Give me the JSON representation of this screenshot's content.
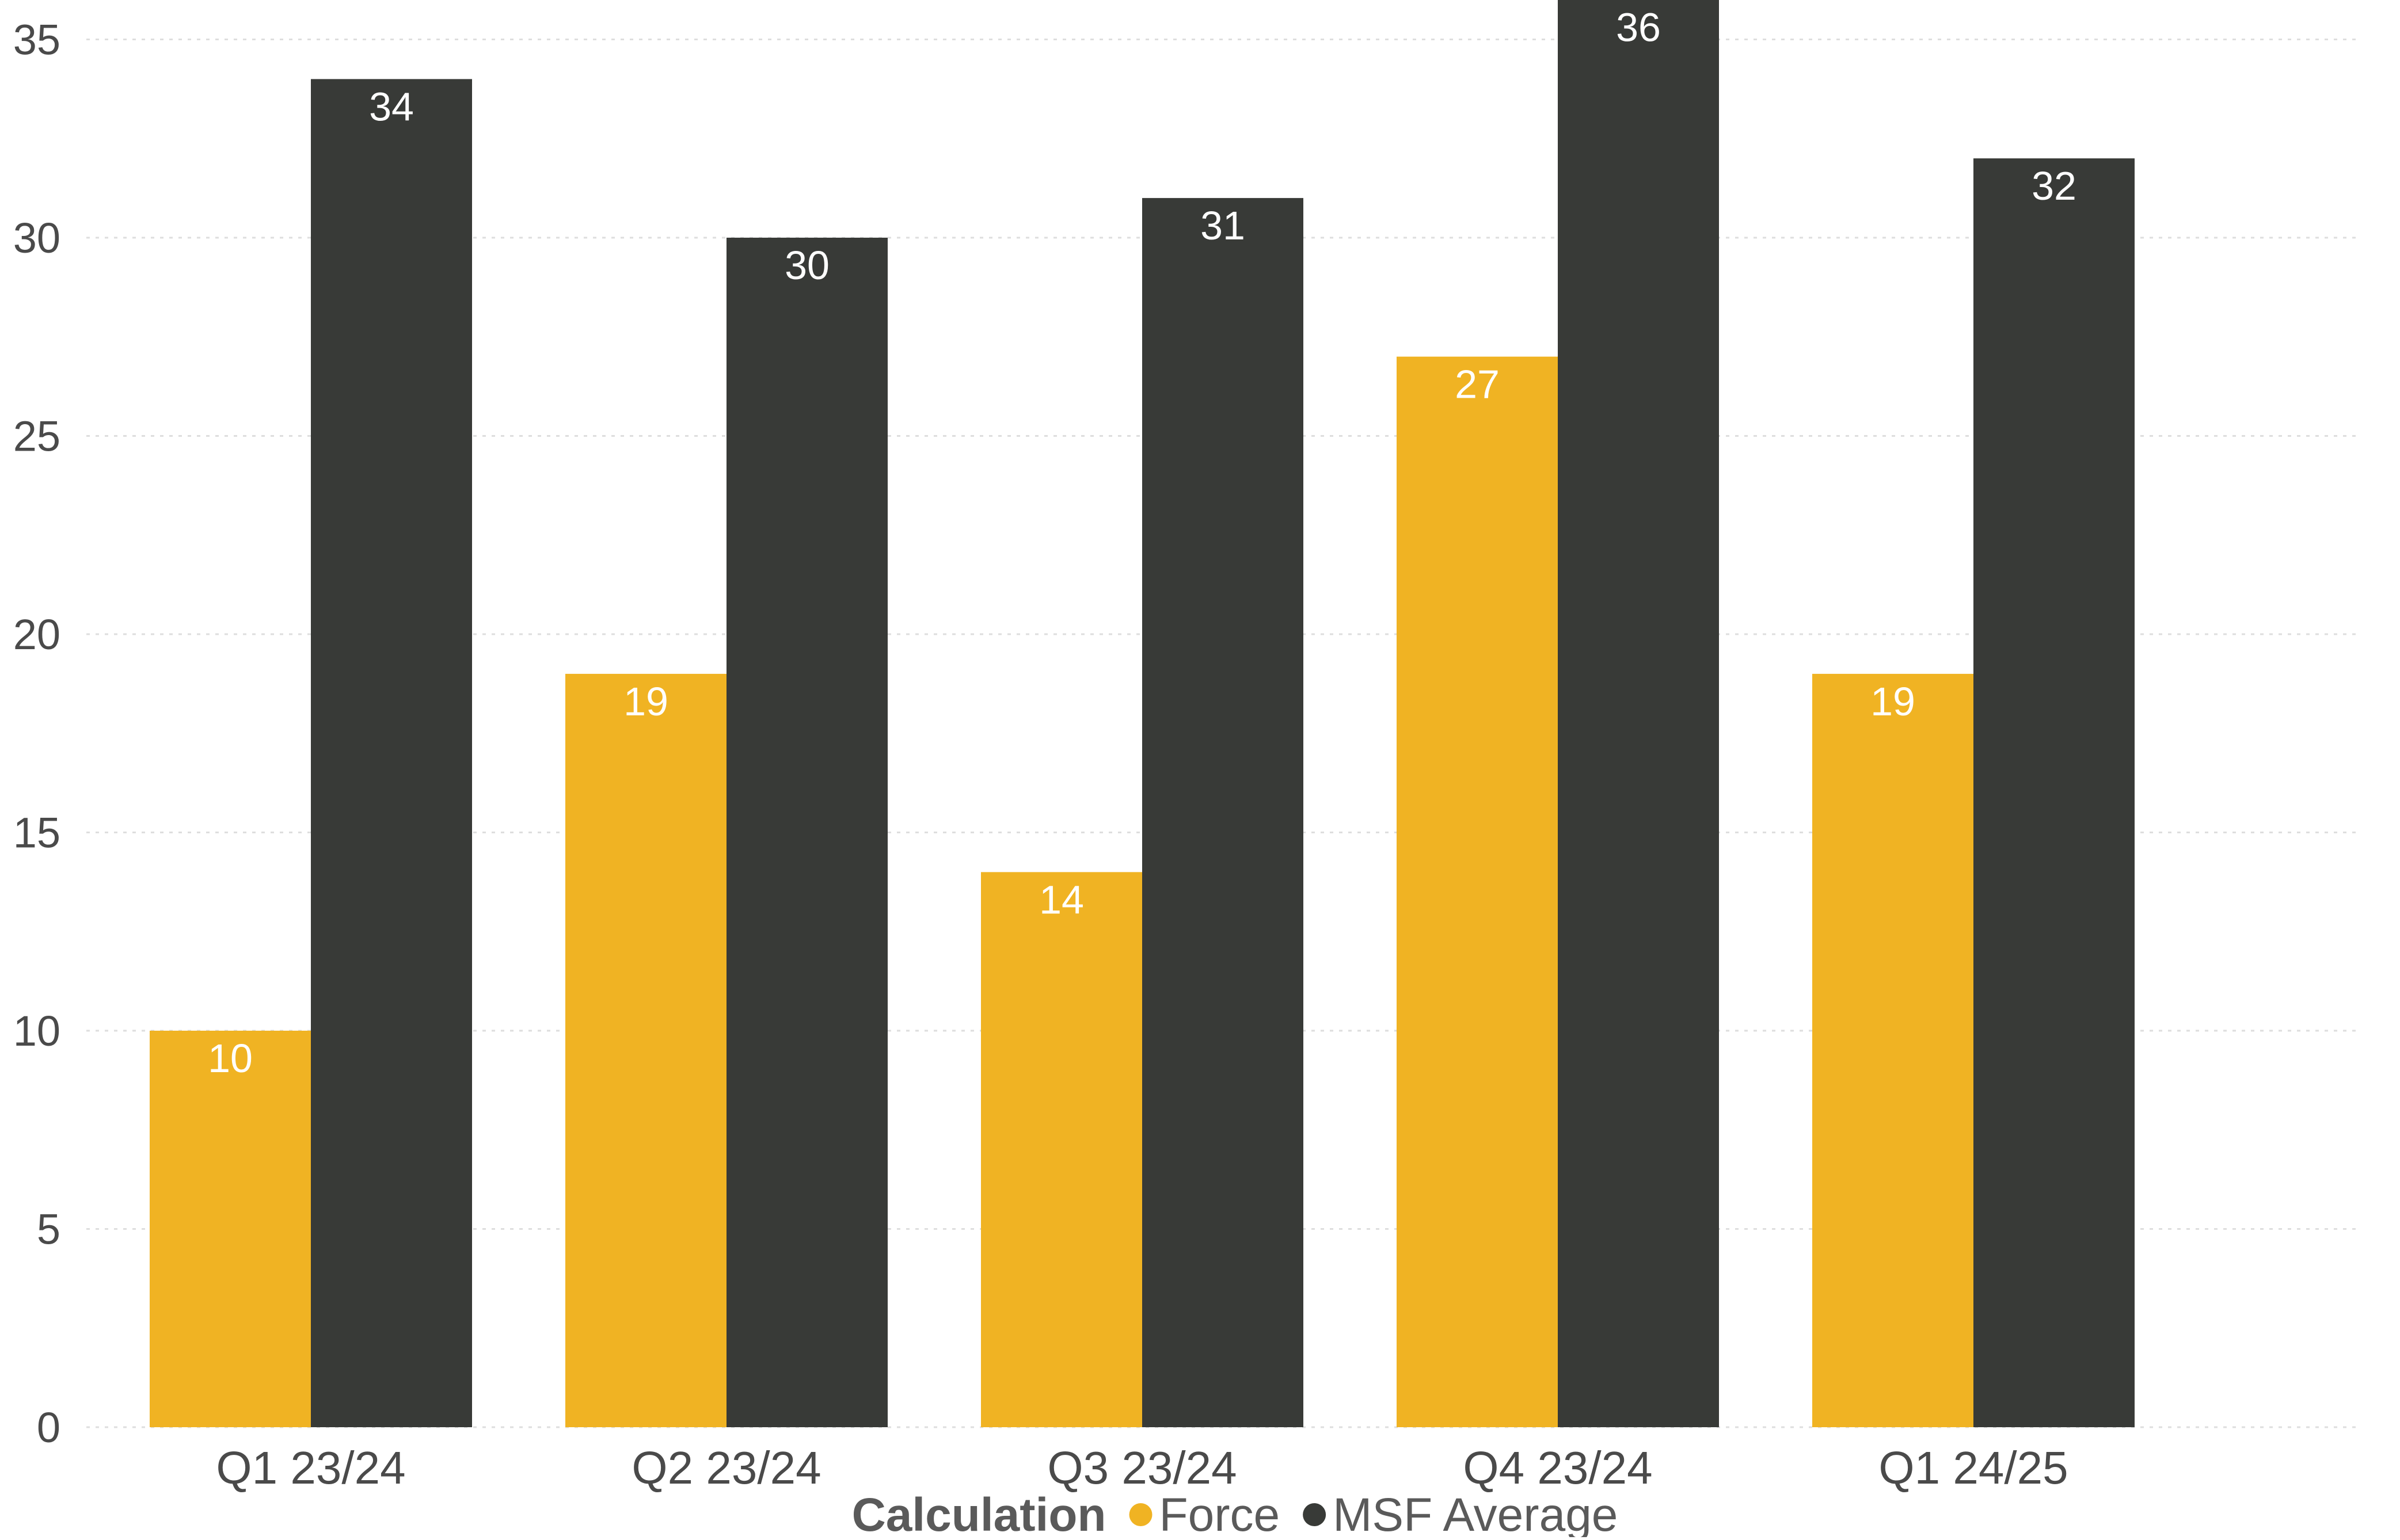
{
  "chart_data": {
    "type": "bar",
    "title": "",
    "xlabel": "",
    "ylabel": "",
    "categories": [
      "Q1 23/24",
      "Q2 23/24",
      "Q3 23/24",
      "Q4 23/24",
      "Q1 24/25"
    ],
    "series": [
      {
        "name": "Force",
        "color": "#F0B323",
        "values": [
          10,
          19,
          14,
          27,
          19
        ]
      },
      {
        "name": "MSF Average",
        "color": "#383A37",
        "values": [
          34,
          30,
          31,
          36,
          32
        ]
      }
    ],
    "ylim": [
      0,
      36
    ],
    "yticks": [
      0,
      5,
      10,
      15,
      20,
      25,
      30,
      35
    ],
    "grid": true,
    "data_labels": true,
    "legend": {
      "title": "Calculation",
      "position": "bottom"
    }
  }
}
